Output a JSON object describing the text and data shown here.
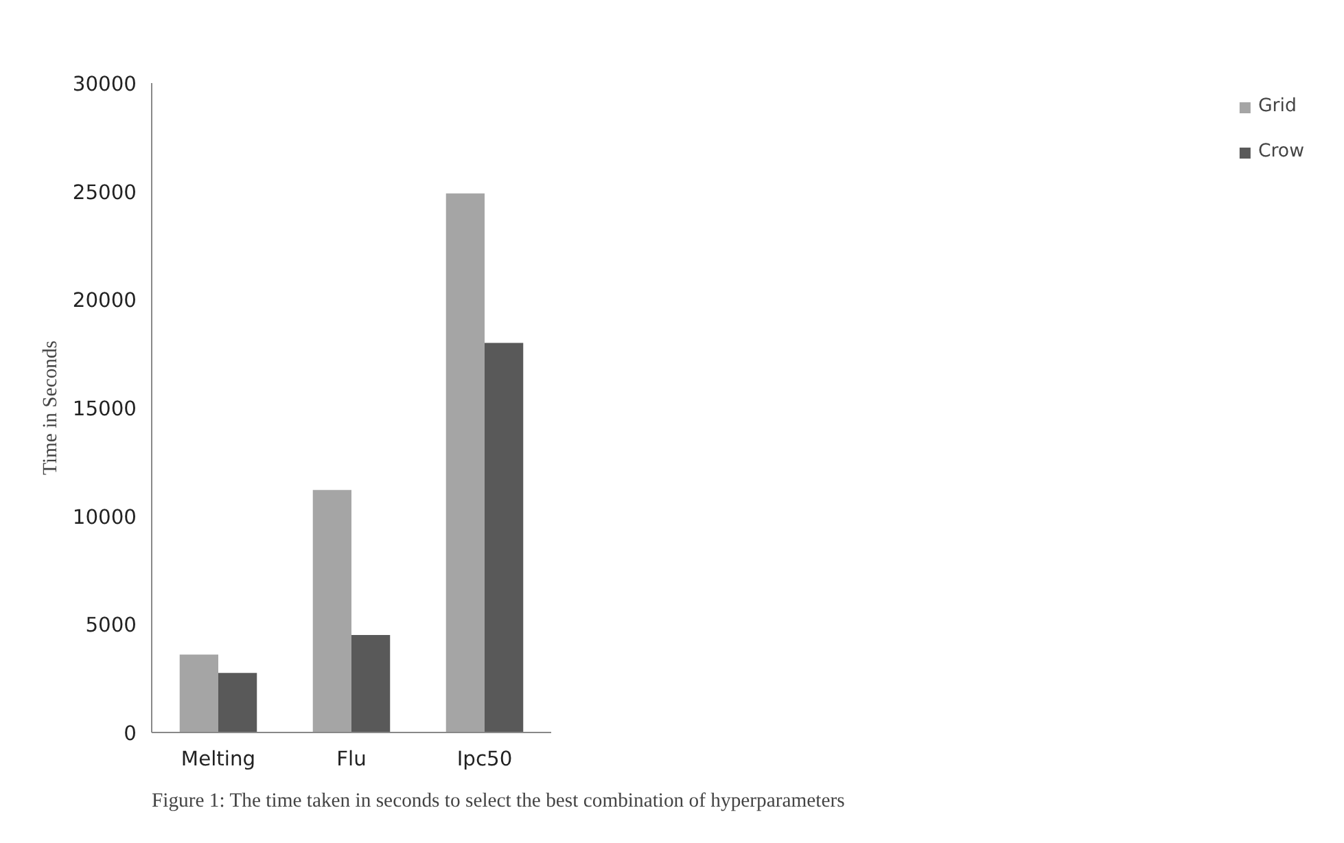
{
  "chart_data": {
    "type": "bar",
    "ylabel": "Time in Seconds",
    "categories": [
      "Melting",
      "Flu",
      "Ipc50"
    ],
    "series": [
      {
        "name": "Grid",
        "color": "#a5a5a5",
        "values": [
          3600,
          11200,
          24900
        ]
      },
      {
        "name": "Crow",
        "color": "#595959",
        "values": [
          2750,
          4500,
          18000
        ]
      }
    ],
    "ylim": [
      0,
      30000
    ],
    "yticks": [
      0,
      5000,
      10000,
      15000,
      20000,
      25000,
      30000
    ],
    "grid": false,
    "legend": "right",
    "annotations": [
      "Figure 1: The time taken in seconds to select the best combination of hyperparameters"
    ]
  }
}
